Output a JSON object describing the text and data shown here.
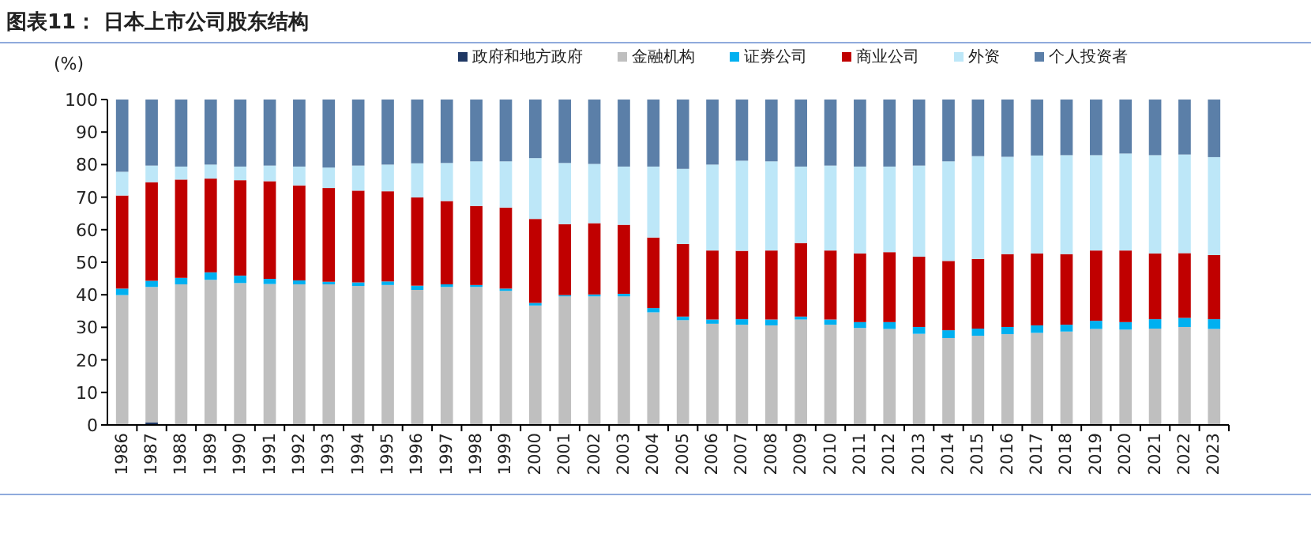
{
  "chart_data": {
    "type": "bar",
    "stacked": true,
    "title": "图表11： 日本上市公司股东结构",
    "ylabel": "(%)",
    "legend": "top",
    "ylim": [
      0,
      100
    ],
    "yticks": [
      0,
      10,
      20,
      30,
      40,
      50,
      60,
      70,
      80,
      90,
      100
    ],
    "categories": [
      "1986",
      "1987",
      "1988",
      "1989",
      "1990",
      "1991",
      "1992",
      "1993",
      "1994",
      "1995",
      "1996",
      "1997",
      "1998",
      "1999",
      "2000",
      "2001",
      "2002",
      "2003",
      "2004",
      "2005",
      "2006",
      "2007",
      "2008",
      "2009",
      "2010",
      "2011",
      "2012",
      "2013",
      "2014",
      "2015",
      "2016",
      "2017",
      "2018",
      "2019",
      "2020",
      "2021",
      "2022",
      "2023"
    ],
    "series": [
      {
        "name": "政府和地方政府",
        "color": "#1f3864",
        "values": [
          0.2,
          0.8,
          0.2,
          0.2,
          0.2,
          0.2,
          0.2,
          0.2,
          0.2,
          0.2,
          0.2,
          0.2,
          0.2,
          0.2,
          0.2,
          0.2,
          0.2,
          0.2,
          0.2,
          0.2,
          0.2,
          0.2,
          0.2,
          0.2,
          0.2,
          0.2,
          0.2,
          0.2,
          0.2,
          0.2,
          0.2,
          0.2,
          0.2,
          0.2,
          0.2,
          0.2,
          0.2,
          0.2
        ]
      },
      {
        "name": "金融机构",
        "color": "#bfbfbf",
        "values": [
          39.7,
          41.6,
          43.0,
          44.4,
          43.4,
          43.1,
          43.0,
          43.0,
          42.5,
          42.8,
          41.3,
          42.2,
          42.2,
          41.0,
          36.5,
          39.3,
          39.3,
          39.3,
          34.4,
          32.0,
          30.9,
          30.6,
          30.4,
          32.2,
          30.6,
          29.6,
          29.3,
          27.8,
          26.5,
          27.2,
          27.7,
          28.1,
          28.5,
          29.3,
          29.1,
          29.4,
          29.9,
          29.3
        ]
      },
      {
        "name": "证券公司",
        "color": "#00b0f0",
        "values": [
          2.0,
          1.9,
          2.0,
          2.3,
          2.3,
          1.6,
          1.2,
          0.8,
          1.1,
          1.1,
          1.3,
          0.8,
          0.6,
          0.7,
          0.8,
          0.4,
          0.6,
          0.8,
          1.3,
          1.1,
          1.3,
          1.7,
          1.8,
          0.9,
          1.6,
          1.8,
          2.1,
          2.1,
          2.4,
          2.2,
          2.2,
          2.3,
          2.1,
          2.5,
          2.3,
          2.9,
          2.8,
          3.0
        ]
      },
      {
        "name": "商业公司",
        "color": "#c00000",
        "values": [
          28.6,
          30.3,
          30.2,
          28.8,
          29.3,
          30.0,
          29.2,
          28.8,
          28.2,
          27.7,
          27.1,
          25.6,
          24.3,
          24.9,
          25.8,
          21.8,
          21.9,
          21.2,
          21.7,
          22.3,
          21.2,
          21.0,
          21.2,
          22.6,
          21.2,
          21.1,
          21.5,
          21.6,
          21.3,
          21.4,
          22.4,
          22.1,
          21.7,
          21.6,
          22.0,
          20.2,
          19.9,
          19.7
        ]
      },
      {
        "name": "外资",
        "color": "#bde7f8",
        "values": [
          7.3,
          5.1,
          4.0,
          4.3,
          4.2,
          4.8,
          5.8,
          6.3,
          7.7,
          8.2,
          10.5,
          11.7,
          13.7,
          14.2,
          18.7,
          18.8,
          18.2,
          17.9,
          21.8,
          23.1,
          26.4,
          27.7,
          27.4,
          23.5,
          26.1,
          26.7,
          26.3,
          28.0,
          30.6,
          31.6,
          29.9,
          30.1,
          30.4,
          29.3,
          29.8,
          30.2,
          30.3,
          30.1
        ]
      },
      {
        "name": "个人投资者",
        "color": "#5b7fa8",
        "values": [
          22.2,
          20.3,
          20.6,
          20.0,
          20.6,
          20.3,
          20.6,
          20.9,
          20.3,
          20.0,
          19.6,
          19.5,
          19.0,
          19.0,
          18.0,
          19.5,
          19.8,
          20.6,
          20.6,
          21.3,
          20.0,
          18.8,
          19.0,
          20.6,
          20.3,
          20.6,
          20.6,
          20.3,
          19.0,
          17.4,
          17.6,
          17.2,
          17.1,
          17.1,
          16.6,
          17.1,
          16.9,
          17.7
        ]
      }
    ]
  }
}
